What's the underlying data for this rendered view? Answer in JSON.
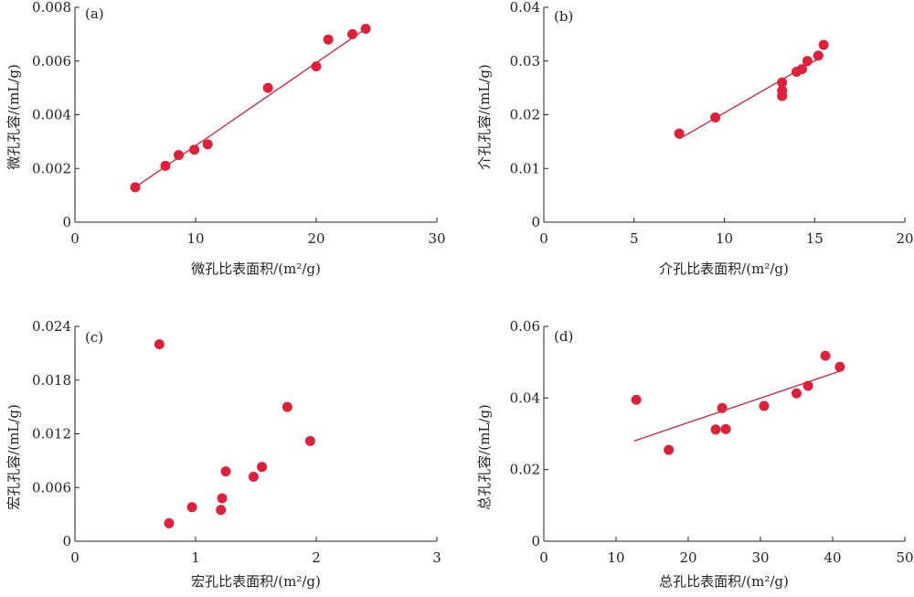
{
  "chart_data": [
    {
      "type": "scatter",
      "label": "(a)",
      "xlabel": "微孔比表面积/(m²/g)",
      "ylabel": "微孔孔容/(mL/g)",
      "xlim": [
        0,
        30
      ],
      "ylim": [
        0,
        0.008
      ],
      "xticks": [
        "0",
        "10",
        "20",
        "30"
      ],
      "yticks": [
        "0",
        "0.002",
        "0.004",
        "0.006",
        "0.008"
      ],
      "points": [
        [
          5,
          0.0013
        ],
        [
          7.5,
          0.0021
        ],
        [
          8.6,
          0.0025
        ],
        [
          9.9,
          0.0027
        ],
        [
          11,
          0.0029
        ],
        [
          16,
          0.005
        ],
        [
          20,
          0.0058
        ],
        [
          21,
          0.0068
        ],
        [
          23,
          0.007
        ],
        [
          24.1,
          0.0072
        ]
      ],
      "fit": [
        [
          5,
          0.0013
        ],
        [
          24.1,
          0.0072
        ]
      ]
    },
    {
      "type": "scatter",
      "label": "(b)",
      "xlabel": "介孔比表面积/(m²/g)",
      "ylabel": "介孔孔容/(mL/g)",
      "xlim": [
        0,
        20
      ],
      "ylim": [
        0,
        0.04
      ],
      "xticks": [
        "0",
        "5",
        "10",
        "15",
        "20"
      ],
      "yticks": [
        "0",
        "0.01",
        "0.02",
        "0.03",
        "0.04"
      ],
      "points": [
        [
          7.5,
          0.0165
        ],
        [
          9.5,
          0.0195
        ],
        [
          13.2,
          0.0235
        ],
        [
          13.2,
          0.0245
        ],
        [
          13.2,
          0.026
        ],
        [
          14,
          0.028
        ],
        [
          14.3,
          0.0285
        ],
        [
          14.6,
          0.03
        ],
        [
          15.2,
          0.031
        ],
        [
          15.5,
          0.033
        ]
      ],
      "fit": [
        [
          7.5,
          0.0155
        ],
        [
          15.5,
          0.031
        ]
      ]
    },
    {
      "type": "scatter",
      "label": "(c)",
      "xlabel": "宏孔比表面积/(m²/g)",
      "ylabel": "宏孔孔容/(mL/g)",
      "xlim": [
        0,
        3
      ],
      "ylim": [
        0,
        0.024
      ],
      "xticks": [
        "0",
        "1",
        "2",
        "3"
      ],
      "yticks": [
        "0",
        "0.006",
        "0.012",
        "0.018",
        "0.024"
      ],
      "points": [
        [
          0.7,
          0.022
        ],
        [
          0.78,
          0.002
        ],
        [
          0.97,
          0.0038
        ],
        [
          1.21,
          0.0035
        ],
        [
          1.22,
          0.0048
        ],
        [
          1.25,
          0.0078
        ],
        [
          1.48,
          0.0072
        ],
        [
          1.55,
          0.0083
        ],
        [
          1.76,
          0.015
        ],
        [
          1.95,
          0.0112
        ]
      ]
    },
    {
      "type": "scatter",
      "label": "(d)",
      "xlabel": "总孔比表面积/(m²/g)",
      "ylabel": "总孔孔容/(mL/g)",
      "xlim": [
        0,
        50
      ],
      "ylim": [
        0,
        0.06
      ],
      "xticks": [
        "0",
        "10",
        "20",
        "30",
        "40",
        "50"
      ],
      "yticks": [
        "0",
        "0.02",
        "0.04",
        "0.06"
      ],
      "points": [
        [
          12.8,
          0.0395
        ],
        [
          17.3,
          0.0255
        ],
        [
          23.8,
          0.0312
        ],
        [
          24.7,
          0.0372
        ],
        [
          25.2,
          0.0313
        ],
        [
          30.5,
          0.0378
        ],
        [
          35,
          0.0413
        ],
        [
          36.6,
          0.0434
        ],
        [
          39,
          0.0518
        ],
        [
          41,
          0.0487
        ]
      ],
      "fit": [
        [
          12.5,
          0.028
        ],
        [
          41,
          0.0475
        ]
      ]
    }
  ]
}
